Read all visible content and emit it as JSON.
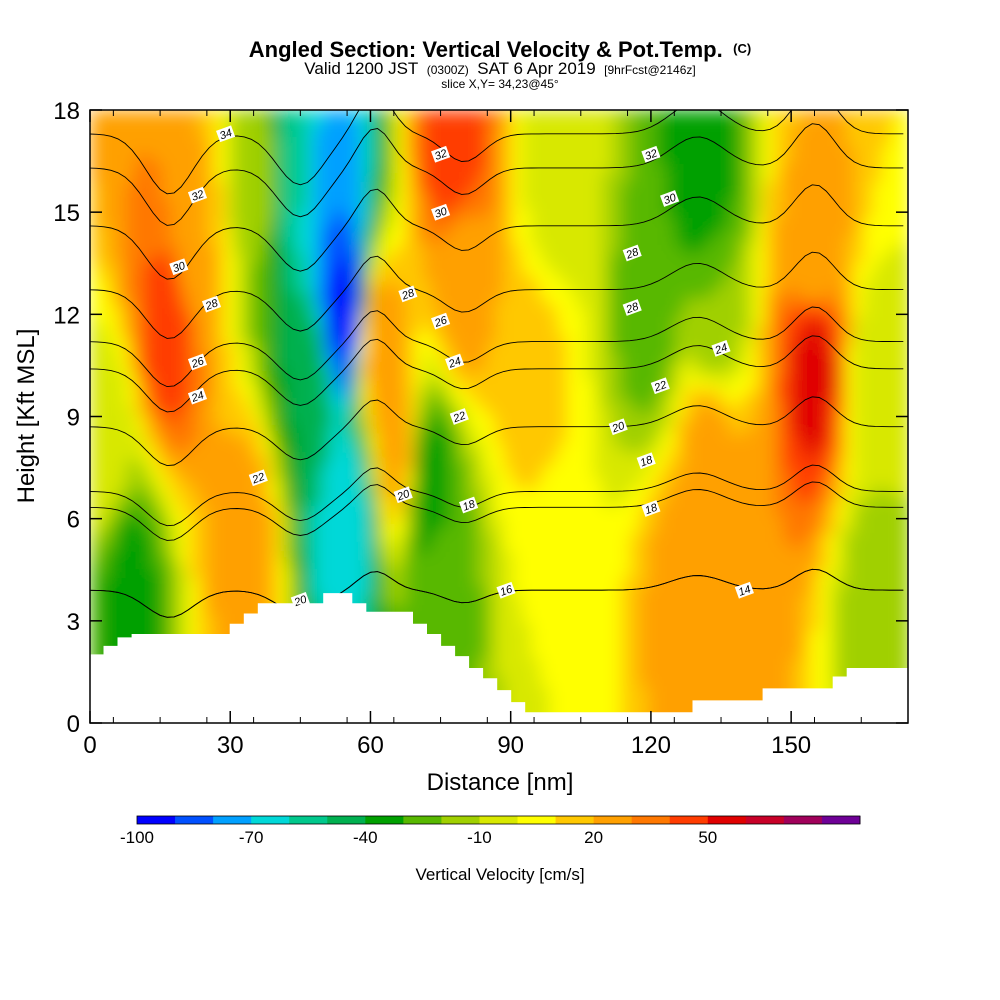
{
  "header": {
    "title_main": "Angled Section: Vertical Velocity & Pot.Temp.",
    "title_unit": "(C)",
    "valid_a": "Valid 1200 JST",
    "valid_b": "(0300Z)",
    "valid_c": "SAT 6 Apr 2019",
    "valid_d": "[9hrFcst@2146z]",
    "slice": "slice X,Y= 34,23@45°"
  },
  "chart_data": {
    "type": "heatmap",
    "x_label": "Distance [nm]",
    "y_label": "Height [Kft MSL]",
    "xlim": [
      0,
      175
    ],
    "ylim": [
      0,
      18
    ],
    "x_ticks": [
      0,
      30,
      60,
      90,
      120,
      150
    ],
    "y_ticks": [
      0,
      3,
      6,
      9,
      12,
      15,
      18
    ],
    "colorbar": {
      "title": "Vertical Velocity [cm/s]",
      "tick_labels": [
        -100,
        -70,
        -40,
        -10,
        20,
        50
      ],
      "level_min": -100,
      "level_step": 10,
      "colors": [
        "#0000ff",
        "#0050ff",
        "#00a0ff",
        "#00d8d8",
        "#00c88c",
        "#00b050",
        "#00a000",
        "#58b800",
        "#a0d000",
        "#d8e800",
        "#ffff00",
        "#ffc800",
        "#ffa000",
        "#ff7800",
        "#ff3c00",
        "#e00000",
        "#c80028",
        "#a0005a",
        "#6e0096"
      ]
    },
    "velocity_field_cm_s": [
      {
        "x": 3,
        "y": 8,
        "value": -5
      },
      {
        "x": 8,
        "y": 4,
        "value": -35
      },
      {
        "x": 17,
        "y": 12,
        "value": 50
      },
      {
        "x": 15,
        "y": 16,
        "value": 30
      },
      {
        "x": 22,
        "y": 14,
        "value": 20
      },
      {
        "x": 33,
        "y": 5.5,
        "value": 25
      },
      {
        "x": 37,
        "y": 16,
        "value": -15
      },
      {
        "x": 43,
        "y": 16,
        "value": -60
      },
      {
        "x": 47,
        "y": 10,
        "value": -40
      },
      {
        "x": 52,
        "y": 15,
        "value": -80
      },
      {
        "x": 54,
        "y": 12,
        "value": -100
      },
      {
        "x": 55,
        "y": 6,
        "value": -70
      },
      {
        "x": 62,
        "y": 11,
        "value": 30
      },
      {
        "x": 66,
        "y": 8,
        "value": 25
      },
      {
        "x": 72,
        "y": 7,
        "value": -40
      },
      {
        "x": 75,
        "y": 4,
        "value": -25
      },
      {
        "x": 78,
        "y": 17,
        "value": 50
      },
      {
        "x": 80,
        "y": 13,
        "value": 25
      },
      {
        "x": 100,
        "y": 16,
        "value": -5
      },
      {
        "x": 95,
        "y": 10,
        "value": 15
      },
      {
        "x": 100,
        "y": 4,
        "value": 0
      },
      {
        "x": 120,
        "y": 12,
        "value": -25
      },
      {
        "x": 131,
        "y": 16,
        "value": -40
      },
      {
        "x": 133,
        "y": 12,
        "value": -20
      },
      {
        "x": 132,
        "y": 8,
        "value": 25
      },
      {
        "x": 127,
        "y": 4,
        "value": 25
      },
      {
        "x": 139,
        "y": 5,
        "value": 30
      },
      {
        "x": 155,
        "y": 10.5,
        "value": 55
      },
      {
        "x": 155,
        "y": 14,
        "value": 20
      },
      {
        "x": 168,
        "y": 10,
        "value": -5
      },
      {
        "x": 168,
        "y": 4,
        "value": -15
      }
    ],
    "theta_contours_c": {
      "levels": [
        14,
        16,
        18,
        20,
        22,
        24,
        26,
        28,
        30,
        32,
        34
      ],
      "labels": [
        {
          "text": "34",
          "x": 29,
          "y": 17.3
        },
        {
          "text": "32",
          "x": 23,
          "y": 15.5
        },
        {
          "text": "30",
          "x": 19,
          "y": 13.4
        },
        {
          "text": "28",
          "x": 26,
          "y": 12.3
        },
        {
          "text": "26",
          "x": 23,
          "y": 10.6
        },
        {
          "text": "24",
          "x": 23,
          "y": 9.6
        },
        {
          "text": "22",
          "x": 36,
          "y": 7.2
        },
        {
          "text": "20",
          "x": 45,
          "y": 3.6
        },
        {
          "text": "32",
          "x": 75,
          "y": 16.7
        },
        {
          "text": "30",
          "x": 75,
          "y": 15.0
        },
        {
          "text": "28",
          "x": 68,
          "y": 12.6
        },
        {
          "text": "26",
          "x": 75,
          "y": 11.8
        },
        {
          "text": "24",
          "x": 78,
          "y": 10.6
        },
        {
          "text": "22",
          "x": 79,
          "y": 9.0
        },
        {
          "text": "20",
          "x": 67,
          "y": 6.7
        },
        {
          "text": "18",
          "x": 81,
          "y": 6.4
        },
        {
          "text": "16",
          "x": 89,
          "y": 3.9
        },
        {
          "text": "32",
          "x": 120,
          "y": 16.7
        },
        {
          "text": "30",
          "x": 124,
          "y": 15.4
        },
        {
          "text": "28",
          "x": 116,
          "y": 13.8
        },
        {
          "text": "28",
          "x": 116,
          "y": 12.2
        },
        {
          "text": "24",
          "x": 135,
          "y": 11.0
        },
        {
          "text": "22",
          "x": 122,
          "y": 9.9
        },
        {
          "text": "20",
          "x": 113,
          "y": 8.7
        },
        {
          "text": "18",
          "x": 119,
          "y": 7.7
        },
        {
          "text": "18",
          "x": 120,
          "y": 6.3
        },
        {
          "text": "14",
          "x": 140,
          "y": 3.9
        }
      ]
    },
    "terrain_kft": [
      [
        0,
        2.0
      ],
      [
        3,
        2.0
      ],
      [
        3,
        2.25
      ],
      [
        6,
        2.25
      ],
      [
        6,
        2.5
      ],
      [
        9,
        2.5
      ],
      [
        9,
        2.6
      ],
      [
        30,
        2.6
      ],
      [
        30,
        2.9
      ],
      [
        33,
        2.9
      ],
      [
        33,
        3.2
      ],
      [
        36,
        3.2
      ],
      [
        36,
        3.5
      ],
      [
        50,
        3.5
      ],
      [
        50,
        3.8
      ],
      [
        56,
        3.8
      ],
      [
        56,
        3.5
      ],
      [
        59,
        3.5
      ],
      [
        59,
        3.25
      ],
      [
        69,
        3.25
      ],
      [
        69,
        2.9
      ],
      [
        72,
        2.9
      ],
      [
        72,
        2.6
      ],
      [
        75,
        2.6
      ],
      [
        75,
        2.25
      ],
      [
        78,
        2.25
      ],
      [
        78,
        1.95
      ],
      [
        81,
        1.95
      ],
      [
        81,
        1.6
      ],
      [
        84,
        1.6
      ],
      [
        84,
        1.3
      ],
      [
        87,
        1.3
      ],
      [
        87,
        0.95
      ],
      [
        90,
        0.95
      ],
      [
        90,
        0.6
      ],
      [
        93,
        0.6
      ],
      [
        93,
        0.3
      ],
      [
        129,
        0.3
      ],
      [
        129,
        0.65
      ],
      [
        144,
        0.65
      ],
      [
        144,
        1.0
      ],
      [
        159,
        1.0
      ],
      [
        159,
        1.35
      ],
      [
        162,
        1.35
      ],
      [
        162,
        1.6
      ],
      [
        175,
        1.6
      ]
    ]
  }
}
